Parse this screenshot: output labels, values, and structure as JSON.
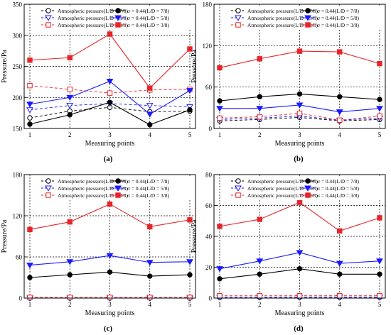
{
  "chart_data": [
    {
      "panel_label": "(a)",
      "type": "line",
      "xlabel": "Measuring points",
      "ylabel": "Pressure/Pa",
      "categories": [
        "1",
        "2",
        "3",
        "4",
        "5"
      ],
      "ylim": [
        150,
        350
      ],
      "yticks": [
        "150",
        "200",
        "250",
        "300",
        "350"
      ],
      "grid": true,
      "legend": "top",
      "series": [
        {
          "name": "Atmospheric pressure(L/D = 7/8)",
          "color": "#000000",
          "dashed": true,
          "marker": "open-circle",
          "values": [
            167,
            178,
            184,
            177,
            178
          ]
        },
        {
          "name": "Atmospheric pressure(L/D = 5/8)",
          "color": "#1a1aff",
          "dashed": true,
          "marker": "open-triangle",
          "values": [
            180,
            187,
            190,
            187,
            185
          ]
        },
        {
          "name": "Atmospheric pressure(L/D = 3/8)",
          "color": "#e8242a",
          "dashed": true,
          "marker": "open-square",
          "values": [
            219,
            213,
            207,
            212,
            213
          ]
        },
        {
          "name": "σ = 0.44(L/D = 7/8)",
          "color": "#000000",
          "dashed": false,
          "marker": "filled-circle",
          "values": [
            157,
            172,
            192,
            156,
            180
          ]
        },
        {
          "name": "σ = 0.44(L/D = 5/8)",
          "color": "#1a1aff",
          "dashed": false,
          "marker": "filled-triangle",
          "values": [
            189,
            200,
            226,
            173,
            211
          ]
        },
        {
          "name": "σ = 0.44(L/D = 3/8)",
          "color": "#e8242a",
          "dashed": false,
          "marker": "filled-square",
          "values": [
            260,
            264,
            302,
            215,
            278
          ]
        }
      ]
    },
    {
      "panel_label": "(b)",
      "type": "line",
      "xlabel": "Measuring points",
      "ylabel": "Pressure/Pa",
      "categories": [
        "1",
        "2",
        "3",
        "4",
        "5"
      ],
      "ylim": [
        0,
        180
      ],
      "yticks": [
        "0",
        "60",
        "120",
        "180"
      ],
      "grid": true,
      "legend": "top",
      "series": [
        {
          "name": "Atmospheric pressure(L/D = 7/8)",
          "color": "#000000",
          "dashed": true,
          "marker": "open-circle",
          "values": [
            11,
            13,
            16,
            11,
            13
          ]
        },
        {
          "name": "Atmospheric pressure(L/D = 5/8)",
          "color": "#1a1aff",
          "dashed": true,
          "marker": "open-triangle",
          "values": [
            13,
            15,
            18,
            12,
            15
          ]
        },
        {
          "name": "Atmospheric pressure(L/D = 3/8)",
          "color": "#e8242a",
          "dashed": true,
          "marker": "open-square",
          "values": [
            15,
            17,
            22,
            12,
            18
          ]
        },
        {
          "name": "σ = 0.44(L/D = 7/8)",
          "color": "#000000",
          "dashed": false,
          "marker": "filled-circle",
          "values": [
            40,
            46,
            50,
            46,
            42
          ]
        },
        {
          "name": "σ = 0.44(L/D = 5/8)",
          "color": "#1a1aff",
          "dashed": false,
          "marker": "filled-triangle",
          "values": [
            29,
            29,
            34,
            24,
            29
          ]
        },
        {
          "name": "σ = 0.44(L/D = 3/8)",
          "color": "#e8242a",
          "dashed": false,
          "marker": "filled-square",
          "values": [
            88,
            101,
            112,
            111,
            94
          ]
        }
      ]
    },
    {
      "panel_label": "(c)",
      "type": "line",
      "xlabel": "Measuring points",
      "ylabel": "Pressure/Pa",
      "categories": [
        "1",
        "2",
        "3",
        "4",
        "5"
      ],
      "ylim": [
        0,
        180
      ],
      "yticks": [
        "0",
        "60",
        "120",
        "180"
      ],
      "grid": true,
      "legend": "top",
      "series": [
        {
          "name": "Atmospheric pressure(L/D = 7/8)",
          "color": "#000000",
          "dashed": true,
          "marker": "open-circle",
          "values": [
            0,
            0,
            0,
            0,
            0
          ]
        },
        {
          "name": "Atmospheric pressure(L/D = 5/8)",
          "color": "#1a1aff",
          "dashed": true,
          "marker": "open-triangle",
          "values": [
            0,
            0,
            0,
            0,
            0
          ]
        },
        {
          "name": "Atmospheric pressure(L/D = 3/8)",
          "color": "#e8242a",
          "dashed": true,
          "marker": "open-square",
          "values": [
            1,
            1,
            1,
            1,
            1
          ]
        },
        {
          "name": "σ = 0.44(L/D = 7/8)",
          "color": "#000000",
          "dashed": false,
          "marker": "filled-circle",
          "values": [
            30,
            34,
            38,
            32,
            34
          ]
        },
        {
          "name": "σ = 0.44(L/D = 5/8)",
          "color": "#1a1aff",
          "dashed": false,
          "marker": "filled-triangle",
          "values": [
            48,
            53,
            62,
            52,
            53
          ]
        },
        {
          "name": "σ = 0.44(L/D = 3/8)",
          "color": "#e8242a",
          "dashed": false,
          "marker": "filled-square",
          "values": [
            100,
            111,
            137,
            104,
            114
          ]
        }
      ]
    },
    {
      "panel_label": "(d)",
      "type": "line",
      "xlabel": "Measuring points",
      "ylabel": "Pressure/Pa",
      "categories": [
        "1",
        "2",
        "3",
        "4",
        "5"
      ],
      "ylim": [
        0,
        80
      ],
      "yticks": [
        "0",
        "20",
        "40",
        "60",
        "80"
      ],
      "grid": true,
      "legend": "top",
      "series": [
        {
          "name": "Atmospheric pressure(L/D = 7/8)",
          "color": "#000000",
          "dashed": true,
          "marker": "open-circle",
          "values": [
            0.5,
            0.5,
            0.5,
            0.5,
            0.5
          ]
        },
        {
          "name": "Atmospheric pressure(L/D = 5/8)",
          "color": "#1a1aff",
          "dashed": true,
          "marker": "open-triangle",
          "values": [
            0.5,
            0.5,
            0.5,
            0.5,
            0.5
          ]
        },
        {
          "name": "Atmospheric pressure(L/D = 3/8)",
          "color": "#e8242a",
          "dashed": true,
          "marker": "open-square",
          "values": [
            1.5,
            1.5,
            1.5,
            1.5,
            1.5
          ]
        },
        {
          "name": "σ = 0.44(L/D = 7/8)",
          "color": "#000000",
          "dashed": false,
          "marker": "filled-circle",
          "values": [
            12.5,
            15.5,
            19,
            15.5,
            15.5
          ]
        },
        {
          "name": "σ = 0.44(L/D = 5/8)",
          "color": "#1a1aff",
          "dashed": false,
          "marker": "filled-triangle",
          "values": [
            19,
            24,
            29.5,
            22.5,
            24
          ]
        },
        {
          "name": "σ = 0.44(L/D = 3/8)",
          "color": "#e8242a",
          "dashed": false,
          "marker": "filled-square",
          "values": [
            46.5,
            51,
            62,
            43.5,
            52
          ]
        }
      ]
    }
  ]
}
